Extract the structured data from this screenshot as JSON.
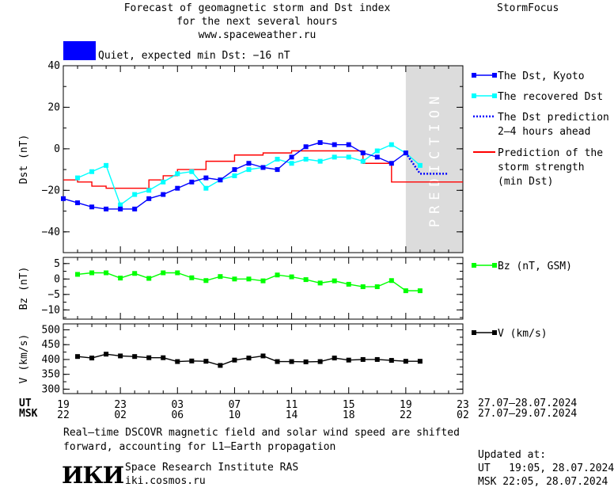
{
  "header": {
    "title_lines": [
      "Forecast of geomagnetic storm and Dst index",
      "for the next several hours",
      "www.spaceweather.ru"
    ],
    "brand": "StormFocus",
    "status_text": "Quiet, expected min Dst: −16 nT",
    "status_color": "#0000ff"
  },
  "colors": {
    "dst_kyoto": "#0000ff",
    "dst_recovered": "#00ffff",
    "dst_prediction": "#0000ff",
    "storm_strength": "#ff0000",
    "bz": "#00ff00",
    "speed": "#000000",
    "prediction_band": "#dcdcdc"
  },
  "chart_data": [
    {
      "id": "dst",
      "type": "line",
      "ylabel": "Dst (nT)",
      "ylim": [
        -50,
        40
      ],
      "xlim": [
        19,
        47
      ],
      "yticks": [
        40,
        20,
        0,
        -20,
        -40
      ],
      "prediction_band": {
        "from": 43.0,
        "to": 47,
        "label": "PREDICTION"
      },
      "series": [
        {
          "name": "The Dst, Kyoto",
          "color": "#0000ff",
          "marker": "square",
          "x": [
            19,
            20,
            21,
            22,
            23,
            24,
            25,
            26,
            27,
            28,
            29,
            30,
            31,
            32,
            33,
            34,
            35,
            36,
            37,
            38,
            39,
            40,
            41,
            42,
            43
          ],
          "values": [
            -24,
            -26,
            -28,
            -29,
            -29,
            -29,
            -24,
            -22,
            -19,
            -16,
            -14,
            -15,
            -10,
            -7,
            -9,
            -10,
            -4,
            1,
            3,
            2,
            2,
            -2,
            -4,
            -7,
            -2
          ]
        },
        {
          "name": "The recovered Dst",
          "color": "#00ffff",
          "marker": "square",
          "x": [
            20,
            21,
            22,
            23,
            24,
            25,
            26,
            27,
            28,
            29,
            30,
            31,
            32,
            33,
            34,
            35,
            36,
            37,
            38,
            39,
            40,
            41,
            42,
            43,
            44
          ],
          "values": [
            -14,
            -11,
            -8,
            -27,
            -22,
            -20,
            -16,
            -12,
            -11,
            -19,
            -15,
            -13,
            -10,
            -9,
            -5,
            -7,
            -5,
            -6,
            -4,
            -4,
            -6,
            -1,
            2,
            -2,
            -8
          ]
        },
        {
          "name": "The Dst prediction\n2–4 hours ahead",
          "color": "#0000ff",
          "style": "dotted",
          "x": [
            43,
            44,
            45,
            46
          ],
          "values": [
            -2,
            -12,
            -12,
            -12
          ]
        },
        {
          "name": "Prediction of the\nstorm strength\n(min Dst)",
          "color": "#ff0000",
          "style": "step",
          "x": [
            19,
            20,
            21,
            22,
            23,
            24,
            25,
            26,
            27,
            28,
            29,
            30,
            31,
            32,
            33,
            34,
            35,
            36,
            37,
            38,
            39,
            40,
            41,
            42,
            47
          ],
          "values": [
            -15,
            -16,
            -18,
            -19,
            -19,
            -19,
            -15,
            -13,
            -10,
            -10,
            -6,
            -6,
            -3,
            -3,
            -2,
            -2,
            -1,
            -1,
            -1,
            -1,
            -1,
            -7,
            -7,
            -16,
            -16
          ]
        }
      ]
    },
    {
      "id": "bz",
      "type": "line",
      "ylabel": "Bz (nT)",
      "ylim": [
        -13,
        7
      ],
      "yticks": [
        5,
        0,
        -5,
        -10
      ],
      "xlim": [
        19,
        47
      ],
      "series": [
        {
          "name": "Bz (nT, GSM)",
          "color": "#00ff00",
          "marker": "square",
          "x": [
            20,
            21,
            22,
            23,
            24,
            25,
            26,
            27,
            28,
            29,
            30,
            31,
            32,
            33,
            34,
            35,
            36,
            37,
            38,
            39,
            40,
            41,
            42,
            43,
            44
          ],
          "values": [
            1.5,
            2,
            2,
            0.3,
            1.8,
            0.2,
            2,
            2,
            0.4,
            -0.5,
            0.8,
            0,
            0,
            -0.6,
            1.3,
            0.7,
            -0.2,
            -1.3,
            -0.6,
            -1.7,
            -2.5,
            -2.5,
            -0.5,
            -3.8,
            -3.8
          ]
        }
      ]
    },
    {
      "id": "v",
      "type": "line",
      "ylabel": "V (km/s)",
      "ylim": [
        285,
        520
      ],
      "yticks": [
        500,
        450,
        400,
        350,
        300
      ],
      "xlim": [
        19,
        47
      ],
      "xtick_positions": [
        19,
        23,
        27,
        31,
        35,
        39,
        43,
        47
      ],
      "xtick_ut": [
        "19",
        "23",
        "03",
        "07",
        "11",
        "15",
        "19",
        "23"
      ],
      "xtick_msk": [
        "22",
        "02",
        "06",
        "10",
        "14",
        "18",
        "22",
        "02"
      ],
      "series": [
        {
          "name": "V (km/s)",
          "color": "#000000",
          "marker": "square",
          "x": [
            20,
            21,
            22,
            23,
            24,
            25,
            26,
            27,
            28,
            29,
            30,
            31,
            32,
            33,
            34,
            35,
            36,
            37,
            38,
            39,
            40,
            41,
            42,
            43,
            44
          ],
          "values": [
            410,
            405,
            418,
            412,
            410,
            406,
            406,
            393,
            395,
            394,
            380,
            398,
            405,
            412,
            393,
            393,
            392,
            393,
            405,
            398,
            400,
            400,
            397,
            394,
            394
          ]
        }
      ]
    }
  ],
  "axis": {
    "ut_label": "UT",
    "msk_label": "MSK",
    "ut_date_range": "27.07–28.07.2024",
    "msk_date_range": "27.07–29.07.2024"
  },
  "footer": {
    "note_lines": [
      "Real–time DSCOVR magnetic field and solar wind speed are shifted",
      "forward, accounting for L1–Earth propagation"
    ],
    "logo_text": "ИКИ",
    "institute": "Space Research Institute RAS",
    "website": "iki.cosmos.ru",
    "updated_label": "Updated at:",
    "updated_ut": "UT   19:05, 28.07.2024",
    "updated_msk": "MSK 22:05, 28.07.2024"
  }
}
